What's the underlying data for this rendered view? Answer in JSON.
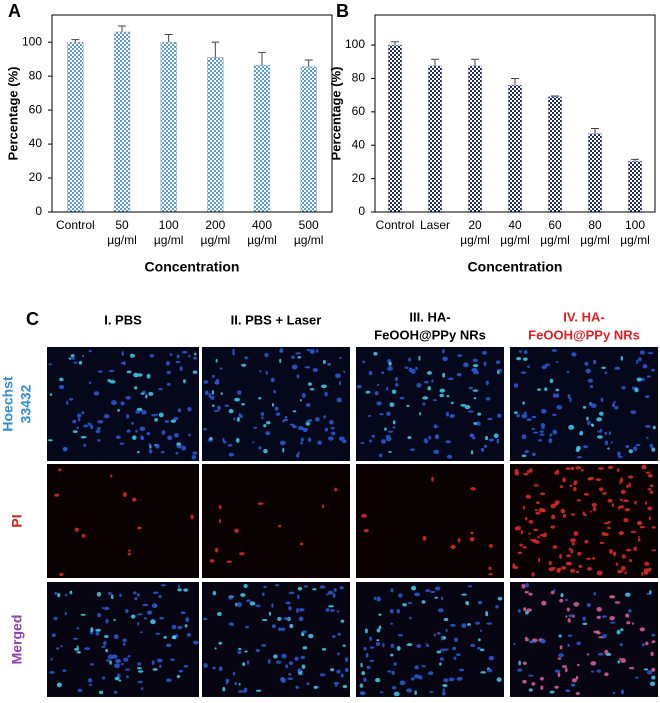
{
  "chart_data": [
    {
      "type": "bar",
      "panel": "A",
      "xlabel": "Concentration",
      "ylabel": "Percentage (%)",
      "categories": [
        "Control",
        "50 µg/ml",
        "100 µg/ml",
        "200 µg/ml",
        "400 µg/ml",
        "500 µg/ml"
      ],
      "values": [
        100,
        106,
        100,
        91,
        86.5,
        85.5
      ],
      "errors": [
        1.5,
        3.5,
        4.5,
        9,
        7.5,
        4
      ],
      "color": "#5b9bd5",
      "ylim": [
        0,
        116
      ],
      "yticks": [
        0,
        20,
        40,
        60,
        80,
        100
      ]
    },
    {
      "type": "bar",
      "panel": "B",
      "xlabel": "Concentration",
      "ylabel": "Percentage (%)",
      "categories": [
        "Control",
        "Laser",
        "20 µg/ml",
        "40 µg/ml",
        "60 µg/ml",
        "80 µg/ml",
        "100 µg/ml"
      ],
      "values": [
        100,
        87.5,
        87.5,
        76,
        69,
        47,
        30.5
      ],
      "errors": [
        2,
        4,
        4,
        4,
        0.5,
        3,
        1
      ],
      "color": "#1f2a6e",
      "ylim": [
        0,
        118
      ],
      "yticks": [
        0,
        20,
        40,
        60,
        80,
        100
      ]
    }
  ],
  "panel_c": {
    "letter": "C",
    "columns": [
      [
        "I. PBS"
      ],
      [
        "II. PBS + Laser"
      ],
      [
        "III. HA-",
        "FeOOH@PPy NRs"
      ],
      [
        "IV. HA-",
        "FeOOH@PPy NRs"
      ]
    ],
    "column_colors": [
      "#000000",
      "#000000",
      "#000000",
      "#e02020"
    ],
    "rows": [
      [
        "Hoechst",
        "33432"
      ],
      [
        "PI"
      ],
      [
        "Merged"
      ]
    ],
    "row_colors": [
      "#2e8fd6",
      "#d02020",
      "#8e44ad"
    ]
  }
}
